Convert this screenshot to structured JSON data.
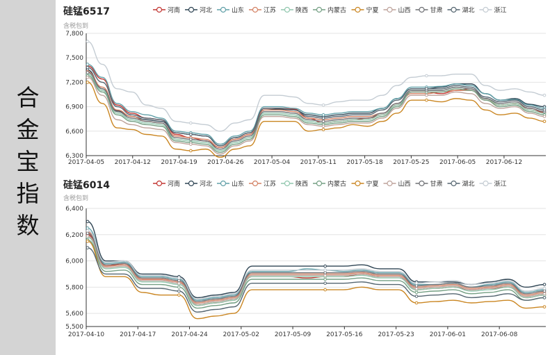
{
  "sidebar": {
    "title_chars": [
      "合",
      "金",
      "宝",
      "指",
      "数"
    ]
  },
  "chart_data": [
    {
      "type": "line",
      "title": "硅锰6517",
      "ylabel": "含税包到",
      "ylim": [
        6300,
        7800
      ],
      "yticks": [
        "6,300",
        "6,600",
        "6,900",
        "7,200",
        "7,500",
        "7,800"
      ],
      "xticks": [
        "2017-04-05",
        "2017-04-12",
        "2017-04-19",
        "2017-04-26",
        "2017-05-04",
        "2017-05-11",
        "2017-05-18",
        "2017-05-25",
        "2017-06-05",
        "2017-06-12"
      ],
      "grid": true,
      "legend_position": "top",
      "series": [
        {
          "name": "河南",
          "color": "#c23531",
          "values": [
            7400,
            7240,
            6920,
            6820,
            6760,
            6740,
            6560,
            6520,
            6480,
            6400,
            6500,
            6560,
            6880,
            6880,
            6870,
            6760,
            6700,
            6720,
            6740,
            6760,
            6800,
            6920,
            7080,
            7080,
            7060,
            7100,
            7120,
            7000,
            6920,
            6940,
            6880,
            6830
          ]
        },
        {
          "name": "河北",
          "color": "#2f4554",
          "values": [
            7350,
            7120,
            6850,
            6780,
            6740,
            6720,
            6580,
            6560,
            6540,
            6420,
            6520,
            6580,
            6860,
            6870,
            6860,
            6800,
            6780,
            6800,
            6820,
            6820,
            6880,
            7000,
            7120,
            7120,
            7140,
            7180,
            7180,
            7060,
            6980,
            7000,
            6930,
            6900
          ]
        },
        {
          "name": "山东",
          "color": "#61a0a8",
          "values": [
            7420,
            7260,
            6940,
            6840,
            6800,
            6760,
            6600,
            6580,
            6560,
            6440,
            6540,
            6600,
            6900,
            6900,
            6880,
            6820,
            6800,
            6820,
            6840,
            6840,
            6880,
            7000,
            7140,
            7140,
            7150,
            7180,
            7160,
            7060,
            6980,
            6990,
            6920,
            6880
          ]
        },
        {
          "name": "江苏",
          "color": "#d48265",
          "values": [
            7330,
            7140,
            6860,
            6780,
            6720,
            6700,
            6540,
            6520,
            6500,
            6400,
            6500,
            6560,
            6860,
            6860,
            6840,
            6760,
            6740,
            6760,
            6780,
            6780,
            6820,
            6940,
            7060,
            7060,
            7080,
            7100,
            7100,
            6980,
            6920,
            6940,
            6860,
            6820
          ]
        },
        {
          "name": "陕西",
          "color": "#91c7ae",
          "values": [
            7300,
            7100,
            6820,
            6740,
            6700,
            6680,
            6500,
            6480,
            6460,
            6360,
            6460,
            6520,
            6820,
            6820,
            6800,
            6720,
            6700,
            6720,
            6740,
            6740,
            6800,
            6920,
            7100,
            7100,
            7100,
            7140,
            7120,
            7000,
            6920,
            6940,
            6860,
            6820
          ]
        },
        {
          "name": "内蒙古",
          "color": "#749f83",
          "values": [
            7280,
            7080,
            6800,
            6720,
            6680,
            6660,
            6480,
            6460,
            6440,
            6340,
            6440,
            6500,
            6800,
            6800,
            6780,
            6700,
            6680,
            6700,
            6720,
            6720,
            6780,
            6900,
            7080,
            7080,
            7080,
            7120,
            7100,
            6980,
            6900,
            6920,
            6840,
            6800
          ]
        },
        {
          "name": "宁夏",
          "color": "#ca8622",
          "values": [
            7200,
            6940,
            6640,
            6620,
            6560,
            6540,
            6380,
            6360,
            6380,
            6280,
            6380,
            6420,
            6720,
            6720,
            6720,
            6600,
            6620,
            6640,
            6680,
            6660,
            6720,
            6820,
            6980,
            6980,
            6960,
            7000,
            6980,
            6860,
            6800,
            6820,
            6760,
            6720
          ]
        },
        {
          "name": "山西",
          "color": "#bda29a",
          "values": [
            7260,
            7040,
            6740,
            6680,
            6640,
            6620,
            6460,
            6440,
            6420,
            6320,
            6420,
            6480,
            6780,
            6780,
            6760,
            6680,
            6660,
            6680,
            6700,
            6700,
            6760,
            6880,
            7040,
            7040,
            7040,
            7080,
            7060,
            6940,
            6880,
            6900,
            6820,
            6780
          ]
        },
        {
          "name": "甘肃",
          "color": "#6e7074",
          "values": [
            7320,
            7120,
            6840,
            6760,
            6720,
            6700,
            6520,
            6500,
            6480,
            6380,
            6480,
            6540,
            6840,
            6840,
            6820,
            6740,
            6720,
            6740,
            6760,
            6760,
            6820,
            6940,
            7100,
            7100,
            7100,
            7140,
            7120,
            7000,
            6940,
            6960,
            6880,
            6840
          ]
        },
        {
          "name": "湖北",
          "color": "#546570",
          "values": [
            7380,
            7200,
            6900,
            6800,
            6760,
            6740,
            6580,
            6560,
            6540,
            6420,
            6520,
            6580,
            6880,
            6880,
            6860,
            6780,
            6760,
            6780,
            6800,
            6800,
            6860,
            6980,
            7120,
            7120,
            7120,
            7160,
            7140,
            7020,
            6960,
            6980,
            6900,
            6860
          ]
        },
        {
          "name": "浙江",
          "color": "#c4ccd3",
          "values": [
            7700,
            7420,
            7120,
            7080,
            6920,
            6880,
            6720,
            6700,
            6680,
            6600,
            6700,
            6740,
            7040,
            7040,
            7020,
            6940,
            6920,
            6960,
            6980,
            6980,
            7040,
            7160,
            7260,
            7280,
            7280,
            7300,
            7300,
            7160,
            7100,
            7120,
            7080,
            7040
          ]
        }
      ]
    },
    {
      "type": "line",
      "title": "硅锰6014",
      "ylabel": "含税包到",
      "ylim": [
        5500,
        6400
      ],
      "yticks": [
        "5,500",
        "5,600",
        "5,800",
        "6,000",
        "6,200",
        "6,400"
      ],
      "xticks": [
        "2017-04-10",
        "2017-04-17",
        "2017-04-24",
        "2017-05-02",
        "2017-05-09",
        "2017-05-16",
        "2017-05-23",
        "2017-06-01",
        "2017-06-08"
      ],
      "grid": true,
      "legend_position": "top",
      "series": [
        {
          "name": "河南",
          "color": "#c23531",
          "values": [
            6200,
            5960,
            5980,
            5860,
            5860,
            5840,
            5660,
            5680,
            5700,
            5880,
            5880,
            5880,
            5870,
            5880,
            5880,
            5900,
            5880,
            5880,
            5780,
            5790,
            5800,
            5780,
            5790,
            5800,
            5720,
            5740
          ]
        },
        {
          "name": "河北",
          "color": "#2f4554",
          "values": [
            6300,
            6000,
            6000,
            5900,
            5900,
            5880,
            5720,
            5740,
            5760,
            5960,
            5960,
            5960,
            5960,
            5960,
            5960,
            5970,
            5940,
            5940,
            5840,
            5840,
            5840,
            5820,
            5840,
            5860,
            5800,
            5820
          ]
        },
        {
          "name": "山东",
          "color": "#61a0a8",
          "values": [
            6250,
            5980,
            5990,
            5880,
            5880,
            5860,
            5700,
            5720,
            5740,
            5920,
            5920,
            5920,
            5940,
            5930,
            5920,
            5930,
            5910,
            5910,
            5820,
            5820,
            5830,
            5800,
            5820,
            5840,
            5760,
            5780
          ]
        },
        {
          "name": "江苏",
          "color": "#d48265",
          "values": [
            6220,
            5960,
            5970,
            5860,
            5860,
            5840,
            5680,
            5700,
            5720,
            5900,
            5900,
            5900,
            5900,
            5900,
            5900,
            5910,
            5890,
            5890,
            5800,
            5810,
            5820,
            5790,
            5800,
            5820,
            5740,
            5760
          ]
        },
        {
          "name": "陕西",
          "color": "#91c7ae",
          "values": [
            6180,
            5940,
            5950,
            5840,
            5840,
            5820,
            5660,
            5680,
            5700,
            5880,
            5880,
            5880,
            5880,
            5880,
            5880,
            5890,
            5870,
            5870,
            5780,
            5790,
            5800,
            5770,
            5780,
            5800,
            5720,
            5740
          ]
        },
        {
          "name": "内蒙古",
          "color": "#749f83",
          "values": [
            6160,
            5920,
            5930,
            5820,
            5820,
            5800,
            5640,
            5660,
            5680,
            5860,
            5860,
            5860,
            5860,
            5860,
            5860,
            5870,
            5850,
            5850,
            5760,
            5770,
            5780,
            5750,
            5760,
            5780,
            5700,
            5720
          ]
        },
        {
          "name": "宁夏",
          "color": "#ca8622",
          "values": [
            6150,
            5880,
            5880,
            5760,
            5740,
            5740,
            5560,
            5580,
            5600,
            5780,
            5780,
            5780,
            5780,
            5780,
            5780,
            5800,
            5780,
            5780,
            5680,
            5690,
            5700,
            5680,
            5690,
            5700,
            5640,
            5650
          ]
        },
        {
          "name": "山西",
          "color": "#bda29a",
          "values": [
            6190,
            5950,
            5960,
            5850,
            5850,
            5830,
            5670,
            5690,
            5710,
            5890,
            5890,
            5890,
            5890,
            5890,
            5890,
            5900,
            5880,
            5880,
            5790,
            5800,
            5810,
            5780,
            5790,
            5810,
            5730,
            5750
          ]
        },
        {
          "name": "甘肃",
          "color": "#6e7074",
          "values": [
            6210,
            5970,
            5980,
            5870,
            5870,
            5850,
            5690,
            5710,
            5730,
            5910,
            5910,
            5910,
            5910,
            5910,
            5910,
            5920,
            5900,
            5900,
            5810,
            5820,
            5830,
            5800,
            5810,
            5830,
            5750,
            5770
          ]
        },
        {
          "name": "湖北",
          "color": "#546570",
          "values": [
            6100,
            5900,
            5900,
            5790,
            5790,
            5770,
            5610,
            5630,
            5650,
            5830,
            5830,
            5830,
            5830,
            5830,
            5830,
            5840,
            5820,
            5820,
            5730,
            5740,
            5750,
            5720,
            5730,
            5750,
            5700,
            5720
          ]
        },
        {
          "name": "浙江",
          "color": "#c4ccd3",
          "values": [
            6230,
            5990,
            6000,
            5890,
            5890,
            5870,
            5710,
            5730,
            5750,
            5930,
            5930,
            5930,
            5930,
            5930,
            5930,
            5940,
            5920,
            5920,
            5830,
            5840,
            5850,
            5820,
            5830,
            5850,
            5770,
            5790
          ]
        }
      ]
    }
  ]
}
